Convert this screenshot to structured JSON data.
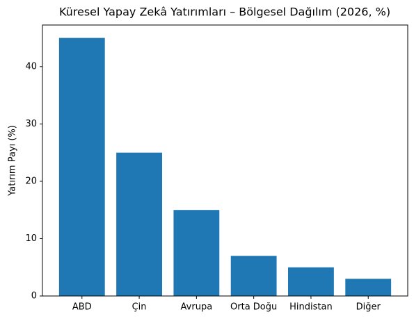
{
  "chart_data": {
    "type": "bar",
    "title": "Küresel Yapay Zekâ Yatırımları – Bölgesel Dağılım (2026, %)",
    "y_label": "Yatırım Payı (%)",
    "categories": [
      "ABD",
      "Çin",
      "Avrupa",
      "Orta Doğu",
      "Hindistan",
      "Diğer"
    ],
    "values": [
      45,
      25,
      15,
      7,
      5,
      3
    ],
    "color": "#1f77b4",
    "ylim": [
      0,
      47.25
    ],
    "yticks": [
      0,
      10,
      20,
      30,
      40
    ],
    "grid": false
  }
}
